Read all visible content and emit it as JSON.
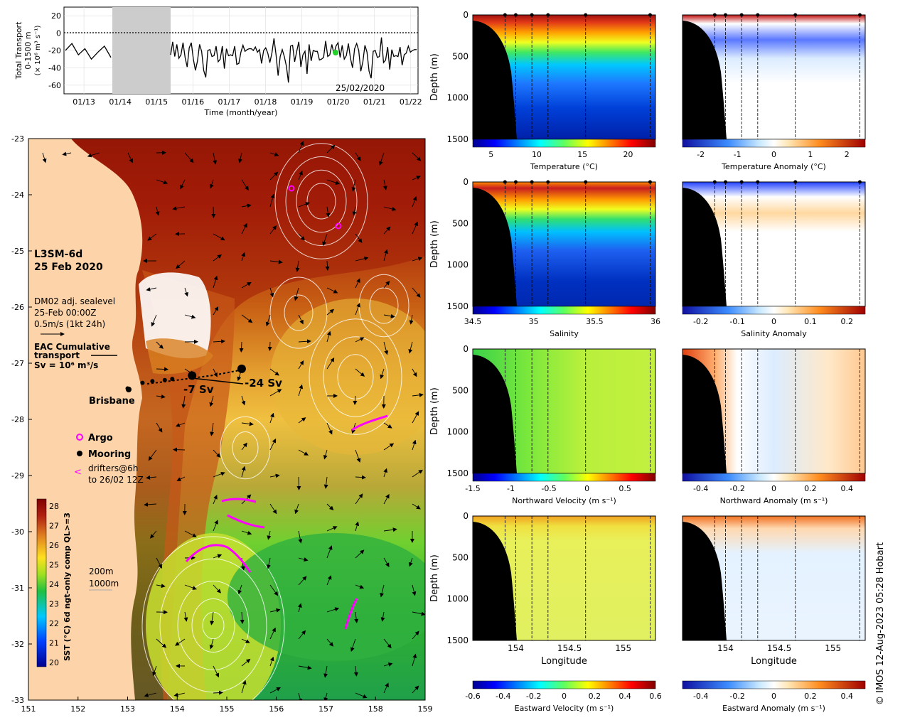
{
  "copyright": "© IMOS 12-Aug-2023 05:28 Hobart",
  "colors": {
    "land": "#fdd3a9",
    "masking": "#000000",
    "argo": "#ff00ff",
    "drifter": "#ff00ff",
    "gap": "#cccccc"
  },
  "chart_data": [
    {
      "type": "line",
      "id": "transport",
      "ylabel": [
        "Total Transport",
        "0-1500 m",
        "(× 10⁶ m³ s⁻¹)"
      ],
      "xlabel": "Time (month/year)",
      "x_ticks": [
        "01/13",
        "01/14",
        "01/15",
        "01/16",
        "01/17",
        "01/18",
        "01/19",
        "01/20",
        "01/21",
        "01/22"
      ],
      "y_ticks": [
        20,
        0,
        -20,
        -40,
        -60
      ],
      "ylim": [
        -70,
        30
      ],
      "date_annotation": "25/02/2020",
      "data_gap": [
        "01/14 (approx. Nov 2013)",
        "01/15 (approx. Mar 2015)"
      ],
      "series": [
        {
          "values": [
            -20,
            -12,
            -25,
            -18,
            -30,
            -22,
            -15,
            -28,
            -35,
            -20,
            -10,
            -25,
            -45,
            -30,
            -18,
            -22,
            -40,
            -55,
            -20,
            -15,
            -30,
            -25,
            -10,
            -35,
            -28,
            -20,
            -42,
            -15,
            -30,
            -25,
            -22,
            -18,
            -35,
            -30,
            -24,
            -12,
            -26,
            -20,
            -15,
            -22
          ]
        }
      ],
      "highlight_value": -24,
      "grid": true
    },
    {
      "type": "heatmap",
      "id": "sst_map",
      "title": "L3SM-6d",
      "date": "25 Feb 2020",
      "x_ticks": [
        "151",
        "152",
        "153",
        "154",
        "155",
        "156",
        "157",
        "158",
        "159"
      ],
      "y_ticks": [
        "-23",
        "-24",
        "-25",
        "-26",
        "-27",
        "-28",
        "-29",
        "-30",
        "-31",
        "-32",
        "-33"
      ],
      "xlim": [
        151,
        159
      ],
      "ylim": [
        -33,
        -23
      ],
      "colorbar_label": "SST (°C) 6d ngt-only comp QL>=3",
      "colorbar_ticks": [
        "28",
        "27",
        "26",
        "25",
        "24",
        "23",
        "22",
        "21",
        "20"
      ],
      "colorbar_range": [
        20,
        28.5
      ],
      "legend_lines": [
        "DM02 adj. sealevel",
        "25-Feb 00:00Z",
        "0.5m/s (1kt 24h)"
      ],
      "transport_title": "EAC Cumulative",
      "transport_subtitle": "transport",
      "transport_unit": "Sv = 10⁶ m³/s",
      "annotations": [
        {
          "text": "-7 Sv",
          "lon": 153.9,
          "lat": -27.25
        },
        {
          "text": "-24 Sv",
          "lon": 155.5,
          "lat": -27.2
        },
        {
          "text": "Brisbane",
          "lon": 152.0,
          "lat": -27.7
        }
      ],
      "legend": [
        "Argo",
        "Mooring"
      ],
      "drifter_legend": [
        "drifters@6h",
        "to 26/02 12Z"
      ],
      "isobaths": [
        "200m",
        "1000m"
      ],
      "argo_floats": [
        {
          "lon": 156.3,
          "lat": -23.9
        },
        {
          "lon": 157.1,
          "lat": -24.55
        }
      ],
      "moorings": [
        {
          "lon": 153.0,
          "lat": -27.45
        },
        {
          "lon": 153.3,
          "lat": -27.35
        },
        {
          "lon": 153.5,
          "lat": -27.32
        },
        {
          "lon": 153.75,
          "lat": -27.3
        },
        {
          "lon": 153.9,
          "lat": -27.28
        },
        {
          "lon": 154.3,
          "lat": -27.22
        },
        {
          "lon": 155.3,
          "lat": -27.1
        }
      ],
      "city": {
        "name": "Brisbane",
        "lon": 153.0,
        "lat": -27.47
      }
    },
    {
      "type": "heatmap",
      "id": "sections",
      "panels": [
        {
          "name": "temperature",
          "colorbar_label": "Temperature (°C)",
          "colorbar_ticks": [
            "5",
            "10",
            "15",
            "20"
          ],
          "range": [
            3,
            23
          ],
          "depth_label": "Depth (m)",
          "depth_ticks": [
            "0",
            "500",
            "1000",
            "1500"
          ]
        },
        {
          "name": "temperature_anomaly",
          "colorbar_label": "Temperature Anomaly (°C)",
          "colorbar_ticks": [
            "-2",
            "-1",
            "0",
            "1",
            "2"
          ],
          "range": [
            -2.5,
            2.5
          ]
        },
        {
          "name": "salinity",
          "colorbar_label": "Salinity",
          "colorbar_ticks": [
            "34.5",
            "35",
            "35.5",
            "36"
          ],
          "range": [
            34.5,
            36
          ],
          "depth_label": "Depth (m)",
          "depth_ticks": [
            "0",
            "500",
            "1000",
            "1500"
          ]
        },
        {
          "name": "salinity_anomaly",
          "colorbar_label": "Salinity Anomaly",
          "colorbar_ticks": [
            "-0.2",
            "-0.1",
            "0",
            "0.1",
            "0.2"
          ],
          "range": [
            -0.25,
            0.25
          ]
        },
        {
          "name": "northward_velocity",
          "colorbar_label": "Northward Velocity (m s⁻¹)",
          "colorbar_ticks": [
            "-1.5",
            "-1",
            "-0.5",
            "0",
            "0.5"
          ],
          "range": [
            -1.5,
            0.9
          ],
          "depth_label": "Depth (m)",
          "depth_ticks": [
            "0",
            "500",
            "1000",
            "1500"
          ]
        },
        {
          "name": "northward_anomaly",
          "colorbar_label": "Northward Anomaly (m s⁻¹)",
          "colorbar_ticks": [
            "-0.4",
            "-0.2",
            "0",
            "0.2",
            "0.4"
          ],
          "range": [
            -0.5,
            0.5
          ]
        },
        {
          "name": "eastward_velocity",
          "colorbar_label": "Eastward Velocity (m s⁻¹)",
          "colorbar_ticks": [
            "-0.6",
            "-0.4",
            "-0.2",
            "0",
            "0.2",
            "0.4",
            "0.6"
          ],
          "range": [
            -0.6,
            0.6
          ],
          "depth_label": "Depth (m)",
          "depth_ticks": [
            "0",
            "500",
            "1000",
            "1500"
          ],
          "xlabel": "Longitude",
          "x_ticks": [
            "154",
            "154.5",
            "155"
          ]
        },
        {
          "name": "eastward_anomaly",
          "colorbar_label": "Eastward Anomaly (m s⁻¹)",
          "colorbar_ticks": [
            "-0.4",
            "-0.2",
            "0",
            "0.2",
            "0.4"
          ],
          "range": [
            -0.5,
            0.5
          ],
          "xlabel": "Longitude",
          "x_ticks": [
            "154",
            "154.5",
            "155"
          ]
        }
      ],
      "mooring_longitudes": [
        153.9,
        154.0,
        154.15,
        154.3,
        154.65,
        155.25
      ],
      "depth_range": [
        0,
        1500
      ],
      "lon_range": [
        153.6,
        155.3
      ]
    }
  ]
}
